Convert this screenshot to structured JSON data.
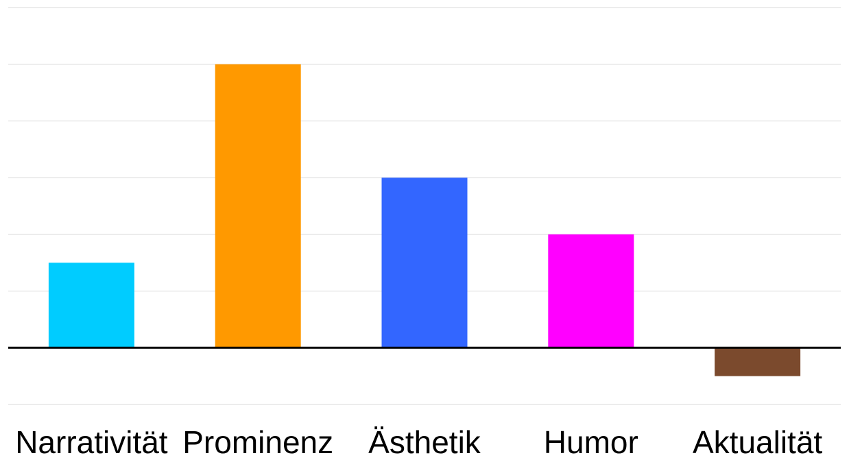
{
  "chart_data": {
    "type": "bar",
    "title": "",
    "xlabel": "",
    "ylabel": "",
    "categories": [
      "Narrativität",
      "Prominenz",
      "Ästhetik",
      "Humor",
      "Aktualität"
    ],
    "values": [
      3,
      10,
      6,
      4,
      -1
    ],
    "colors": [
      "#00ccff",
      "#ff9900",
      "#3366ff",
      "#ff00ff",
      "#7b4a2d"
    ],
    "ylim": [
      -2,
      12
    ],
    "ytick_step": 2,
    "grid": true,
    "y_tick_labels_shown": false,
    "legend": "none"
  }
}
